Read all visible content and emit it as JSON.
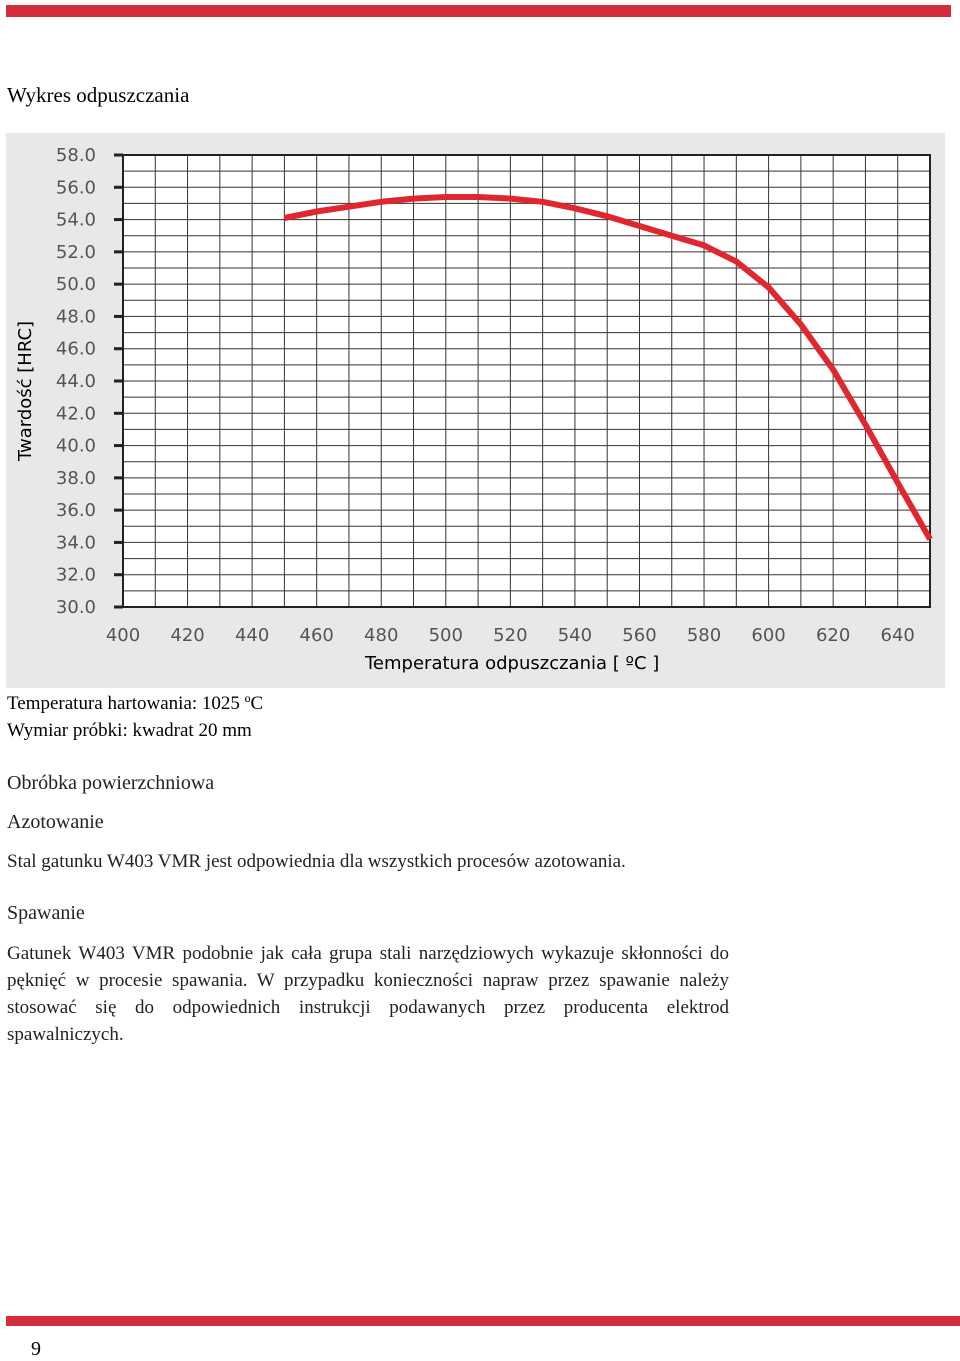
{
  "page": {
    "title": "Wykres odpuszczania",
    "accent_color": "#d42e3c",
    "page_number": "9"
  },
  "specimen": {
    "hardening_temp": "Temperatura hartowania: 1025 ºC",
    "sample_size": "Wymiar próbki: kwadrat 20 mm"
  },
  "surface": {
    "heading": "Obróbka powierzchniowa",
    "nitriding_title": "Azotowanie",
    "nitriding_text": "Stal gatunku W403 VMR jest odpowiednia dla wszystkich procesów azotowania.",
    "welding_title": "Spawanie",
    "welding_text": "Gatunek W403 VMR podobnie jak cała grupa stali narzędziowych wykazuje skłonności do pęknięć w procesie spawania. W przypadku konieczności napraw przez spawanie należy stosować się do odpowiednich instrukcji podawanych przez producenta elektrod spawalniczych."
  },
  "chart_data": {
    "type": "line",
    "title": "",
    "xlabel": "Temperatura odpuszczania  [ ºC ]",
    "ylabel": "Twardość [HRC]",
    "xlim": [
      400,
      650
    ],
    "ylim": [
      30,
      58
    ],
    "grid": true,
    "line_color": "#e0262e",
    "background_color": "#e8e8e8",
    "x_ticks": [
      "400",
      "420",
      "440",
      "460",
      "480",
      "500",
      "520",
      "540",
      "560",
      "580",
      "600",
      "620",
      "640"
    ],
    "y_ticks": [
      "58.0",
      "56.0",
      "54.0",
      "52.0",
      "50.0",
      "48.0",
      "46.0",
      "44.0",
      "42.0",
      "40.0",
      "38.0",
      "36.0",
      "34.0",
      "32.0",
      "30.0"
    ],
    "series": [
      {
        "x": [
          450,
          460,
          470,
          480,
          490,
          500,
          510,
          520,
          530,
          540,
          550,
          560,
          570,
          580,
          590,
          600,
          610,
          620,
          630,
          640,
          650
        ],
        "y": [
          54.1,
          54.5,
          54.8,
          55.1,
          55.3,
          55.4,
          55.4,
          55.3,
          55.1,
          54.7,
          54.2,
          53.6,
          53.0,
          52.4,
          51.4,
          49.8,
          47.5,
          44.7,
          41.3,
          37.7,
          34.2
        ]
      }
    ]
  }
}
